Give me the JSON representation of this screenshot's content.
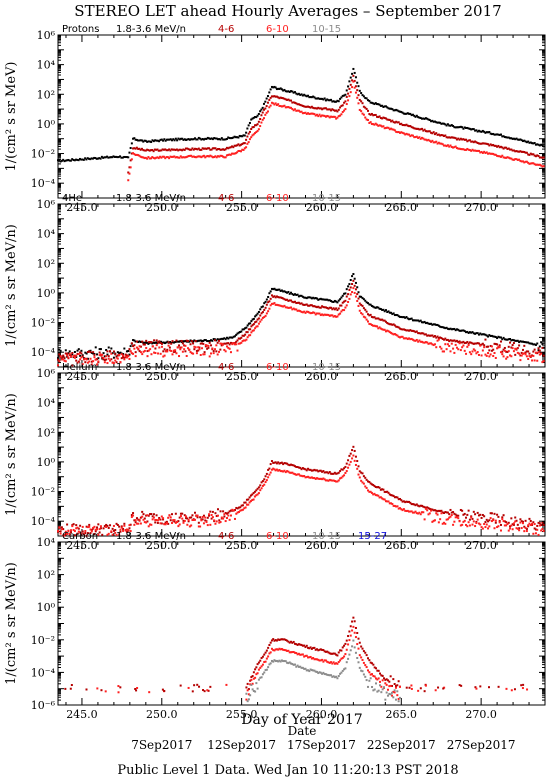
{
  "title": "STEREO LET ahead Hourly Averages – September 2017",
  "footer": "Public Level 1 Data. Wed Jan 10 11:20:13 PST 2018",
  "xlabel": "Day of Year 2017",
  "date_label": "Date",
  "date_ticks": [
    {
      "label": "7Sep2017",
      "x": 250.0
    },
    {
      "label": "12Sep2017",
      "x": 255.0
    },
    {
      "label": "17Sep2017",
      "x": 260.0
    },
    {
      "label": "22Sep2017",
      "x": 265.0
    },
    {
      "label": "27Sep2017",
      "x": 270.0
    }
  ],
  "colors": {
    "1.8-3.6 MeV/n": "#000000",
    "4-6": "#b40000",
    "6-10": "#ff2020",
    "10-15": "#8c8c8c",
    "15-27": "#1010dd"
  },
  "chart_data": [
    {
      "type": "scatter",
      "species": "Protons",
      "ylabel": "1/(cm² s sr MeV)",
      "xlim": [
        243.5,
        274.0
      ],
      "ylim_exp": [
        -5,
        6
      ],
      "log_y": true,
      "y_tick_labels": [
        "10⁻⁴",
        "10⁻²",
        "10⁰",
        "10²",
        "10⁴",
        "10⁶"
      ],
      "x_tick_labels": [
        "245.0",
        "250.0",
        "255.0",
        "260.0",
        "265.0",
        "270.0"
      ],
      "series": [
        {
          "name": "1.8-3.6 MeV/n",
          "points": [
            [
              243.5,
              -2.5
            ],
            [
              247.3,
              -2.2
            ],
            [
              247.9,
              -2.3
            ],
            [
              248.2,
              -1.0
            ],
            [
              249.0,
              -1.2
            ],
            [
              250.0,
              -1.1
            ],
            [
              252.0,
              -1.0
            ],
            [
              254.0,
              -1.0
            ],
            [
              255.2,
              -0.8
            ],
            [
              255.6,
              0.3
            ],
            [
              256.0,
              0.5
            ],
            [
              256.4,
              1.3
            ],
            [
              256.9,
              2.5
            ],
            [
              257.6,
              2.3
            ],
            [
              259.0,
              1.9
            ],
            [
              261.0,
              1.5
            ],
            [
              261.5,
              2.0
            ],
            [
              262.0,
              3.7
            ],
            [
              262.4,
              2.2
            ],
            [
              263.0,
              1.5
            ],
            [
              265.0,
              0.8
            ],
            [
              268.0,
              -0.1
            ],
            [
              271.0,
              -0.7
            ],
            [
              274.0,
              -1.5
            ]
          ]
        },
        {
          "name": "4-6",
          "points": [
            [
              247.9,
              -3.3
            ],
            [
              248.2,
              -1.6
            ],
            [
              249.0,
              -1.8
            ],
            [
              252.0,
              -1.7
            ],
            [
              254.0,
              -1.7
            ],
            [
              255.2,
              -1.3
            ],
            [
              255.6,
              -0.3
            ],
            [
              256.0,
              0.0
            ],
            [
              256.4,
              0.9
            ],
            [
              256.9,
              1.9
            ],
            [
              257.6,
              1.7
            ],
            [
              259.0,
              1.2
            ],
            [
              261.0,
              0.9
            ],
            [
              261.5,
              1.5
            ],
            [
              262.0,
              3.2
            ],
            [
              262.4,
              1.6
            ],
            [
              263.0,
              0.7
            ],
            [
              265.0,
              0.0
            ],
            [
              268.0,
              -0.9
            ],
            [
              271.0,
              -1.5
            ],
            [
              274.0,
              -2.3
            ]
          ]
        },
        {
          "name": "6-10",
          "points": [
            [
              247.9,
              -3.8
            ],
            [
              248.2,
              -2.0
            ],
            [
              249.0,
              -2.3
            ],
            [
              252.0,
              -2.2
            ],
            [
              254.0,
              -2.2
            ],
            [
              255.2,
              -1.7
            ],
            [
              255.6,
              -0.9
            ],
            [
              256.0,
              -0.5
            ],
            [
              256.4,
              0.4
            ],
            [
              256.9,
              1.4
            ],
            [
              257.6,
              1.2
            ],
            [
              259.0,
              0.7
            ],
            [
              261.0,
              0.4
            ],
            [
              261.5,
              1.0
            ],
            [
              262.0,
              2.8
            ],
            [
              262.4,
              1.0
            ],
            [
              263.0,
              0.1
            ],
            [
              265.0,
              -0.6
            ],
            [
              268.0,
              -1.5
            ],
            [
              271.0,
              -2.1
            ],
            [
              274.0,
              -2.9
            ]
          ]
        }
      ]
    },
    {
      "type": "scatter",
      "species": "4He",
      "ylabel": "1/(cm² s sr MeV/n)",
      "xlim": [
        243.5,
        274.0
      ],
      "ylim_exp": [
        -5,
        6
      ],
      "log_y": true,
      "y_tick_labels": [
        "10⁻⁴",
        "10⁻²",
        "10⁰",
        "10²",
        "10⁴",
        "10⁶"
      ],
      "x_tick_labels": [
        "245.0",
        "250.0",
        "255.0",
        "260.0",
        "265.0",
        "270.0"
      ],
      "series": [
        {
          "name": "1.8-3.6 MeV/n",
          "points": [
            [
              243.5,
              -4.1
            ],
            [
              247.9,
              -4.0
            ],
            [
              248.2,
              -3.2
            ],
            [
              249.0,
              -3.4
            ],
            [
              251.0,
              -3.3
            ],
            [
              253.0,
              -3.2
            ],
            [
              254.5,
              -3.0
            ],
            [
              255.3,
              -2.3
            ],
            [
              256.0,
              -1.4
            ],
            [
              256.5,
              -0.6
            ],
            [
              256.9,
              0.3
            ],
            [
              257.6,
              0.1
            ],
            [
              259.0,
              -0.3
            ],
            [
              261.0,
              -0.6
            ],
            [
              261.5,
              0.0
            ],
            [
              262.0,
              1.3
            ],
            [
              262.4,
              -0.2
            ],
            [
              263.0,
              -0.8
            ],
            [
              265.0,
              -1.6
            ],
            [
              268.0,
              -2.4
            ],
            [
              271.0,
              -3.0
            ],
            [
              274.0,
              -3.6
            ]
          ]
        },
        {
          "name": "4-6",
          "points": [
            [
              243.5,
              -4.3
            ],
            [
              247.9,
              -4.3
            ],
            [
              248.2,
              -3.6
            ],
            [
              251.0,
              -3.6
            ],
            [
              253.0,
              -3.6
            ],
            [
              254.5,
              -3.4
            ],
            [
              255.3,
              -2.7
            ],
            [
              256.0,
              -1.8
            ],
            [
              256.5,
              -1.0
            ],
            [
              256.9,
              -0.2
            ],
            [
              257.6,
              -0.4
            ],
            [
              259.0,
              -0.8
            ],
            [
              261.0,
              -1.1
            ],
            [
              261.5,
              -0.5
            ],
            [
              262.0,
              0.8
            ],
            [
              262.4,
              -0.7
            ],
            [
              263.0,
              -1.5
            ],
            [
              265.0,
              -2.4
            ],
            [
              268.0,
              -3.2
            ],
            [
              271.0,
              -3.6
            ],
            [
              274.0,
              -4.1
            ]
          ]
        },
        {
          "name": "6-10",
          "points": [
            [
              243.5,
              -4.5
            ],
            [
              247.9,
              -4.5
            ],
            [
              248.2,
              -3.9
            ],
            [
              251.0,
              -3.9
            ],
            [
              253.0,
              -3.9
            ],
            [
              254.5,
              -3.7
            ],
            [
              255.3,
              -3.1
            ],
            [
              256.0,
              -2.2
            ],
            [
              256.5,
              -1.5
            ],
            [
              256.9,
              -0.7
            ],
            [
              257.6,
              -0.9
            ],
            [
              259.0,
              -1.3
            ],
            [
              261.0,
              -1.6
            ],
            [
              261.5,
              -1.0
            ],
            [
              262.0,
              0.3
            ],
            [
              262.4,
              -1.2
            ],
            [
              263.0,
              -2.1
            ],
            [
              265.0,
              -3.0
            ],
            [
              268.0,
              -3.7
            ],
            [
              271.0,
              -4.0
            ],
            [
              274.0,
              -4.3
            ]
          ]
        }
      ]
    },
    {
      "type": "scatter",
      "species": "Helium",
      "ylabel": "1/(cm² s sr MeV/n)",
      "xlim": [
        243.5,
        274.0
      ],
      "ylim_exp": [
        -5,
        6
      ],
      "log_y": true,
      "y_tick_labels": [
        "10⁻⁴",
        "10⁻²",
        "10⁰",
        "10²",
        "10⁴",
        "10⁶"
      ],
      "x_tick_labels": [
        "245.0",
        "250.0",
        "255.0",
        "260.0",
        "265.0",
        "270.0"
      ],
      "series": [
        {
          "name": "4-6",
          "points": [
            [
              243.5,
              -4.6
            ],
            [
              247.9,
              -4.5
            ],
            [
              248.2,
              -3.7
            ],
            [
              250.0,
              -3.8
            ],
            [
              252.0,
              -3.8
            ],
            [
              254.0,
              -3.5
            ],
            [
              255.0,
              -3.0
            ],
            [
              256.0,
              -1.8
            ],
            [
              256.5,
              -1.0
            ],
            [
              256.9,
              0.0
            ],
            [
              257.6,
              -0.1
            ],
            [
              259.0,
              -0.5
            ],
            [
              261.0,
              -0.8
            ],
            [
              261.5,
              -0.3
            ],
            [
              262.0,
              1.0
            ],
            [
              262.4,
              -0.6
            ],
            [
              263.0,
              -1.4
            ],
            [
              265.0,
              -2.6
            ],
            [
              268.0,
              -3.5
            ],
            [
              271.0,
              -3.9
            ],
            [
              274.0,
              -4.4
            ]
          ]
        },
        {
          "name": "6-10",
          "points": [
            [
              243.5,
              -4.7
            ],
            [
              247.9,
              -4.7
            ],
            [
              248.2,
              -3.9
            ],
            [
              250.0,
              -4.0
            ],
            [
              252.0,
              -4.0
            ],
            [
              254.0,
              -3.8
            ],
            [
              255.0,
              -3.3
            ],
            [
              256.0,
              -2.2
            ],
            [
              256.5,
              -1.4
            ],
            [
              256.9,
              -0.5
            ],
            [
              257.6,
              -0.6
            ],
            [
              259.0,
              -1.0
            ],
            [
              261.0,
              -1.3
            ],
            [
              261.5,
              -0.8
            ],
            [
              262.0,
              0.4
            ],
            [
              262.4,
              -1.1
            ],
            [
              263.0,
              -2.0
            ],
            [
              265.0,
              -3.2
            ],
            [
              268.0,
              -3.9
            ],
            [
              271.0,
              -4.2
            ],
            [
              274.0,
              -4.6
            ]
          ]
        }
      ]
    },
    {
      "type": "scatter",
      "species": "Carbon",
      "ylabel": "1/(cm² s sr MeV/n)",
      "xlim": [
        243.5,
        274.0
      ],
      "ylim_exp": [
        -6,
        4
      ],
      "log_y": true,
      "y_tick_labels": [
        "10⁻⁶",
        "10⁻⁴",
        "10⁻²",
        "10⁰",
        "10²",
        "10⁴"
      ],
      "x_tick_labels": [
        "245.0",
        "250.0",
        "255.0",
        "260.0",
        "265.0",
        "270.0"
      ],
      "series": [
        {
          "name": "4-6",
          "points": [
            [
              255.3,
              -5.0
            ],
            [
              256.0,
              -3.5
            ],
            [
              256.5,
              -2.8
            ],
            [
              256.9,
              -2.0
            ],
            [
              257.6,
              -2.0
            ],
            [
              259.0,
              -2.4
            ],
            [
              261.0,
              -2.9
            ],
            [
              261.5,
              -2.3
            ],
            [
              262.0,
              -0.6
            ],
            [
              262.4,
              -2.2
            ],
            [
              263.0,
              -3.3
            ],
            [
              264.0,
              -4.4
            ],
            [
              265.0,
              -5.0
            ]
          ]
        },
        {
          "name": "6-10",
          "points": [
            [
              255.3,
              -5.3
            ],
            [
              256.0,
              -4.0
            ],
            [
              256.5,
              -3.3
            ],
            [
              256.9,
              -2.6
            ],
            [
              257.6,
              -2.6
            ],
            [
              259.0,
              -3.0
            ],
            [
              261.0,
              -3.5
            ],
            [
              261.5,
              -2.9
            ],
            [
              262.0,
              -1.2
            ],
            [
              262.4,
              -2.9
            ],
            [
              263.0,
              -4.0
            ],
            [
              264.0,
              -4.9
            ],
            [
              265.0,
              -5.3
            ]
          ]
        },
        {
          "name": "10-15",
          "points": [
            [
              255.3,
              -5.5
            ],
            [
              256.0,
              -4.6
            ],
            [
              256.5,
              -3.9
            ],
            [
              256.9,
              -3.3
            ],
            [
              257.6,
              -3.3
            ],
            [
              259.0,
              -3.8
            ],
            [
              261.0,
              -4.3
            ],
            [
              261.5,
              -3.7
            ],
            [
              262.0,
              -2.1
            ],
            [
              262.4,
              -3.7
            ],
            [
              263.0,
              -4.7
            ],
            [
              264.0,
              -5.3
            ],
            [
              265.0,
              -5.5
            ]
          ]
        }
      ]
    }
  ]
}
